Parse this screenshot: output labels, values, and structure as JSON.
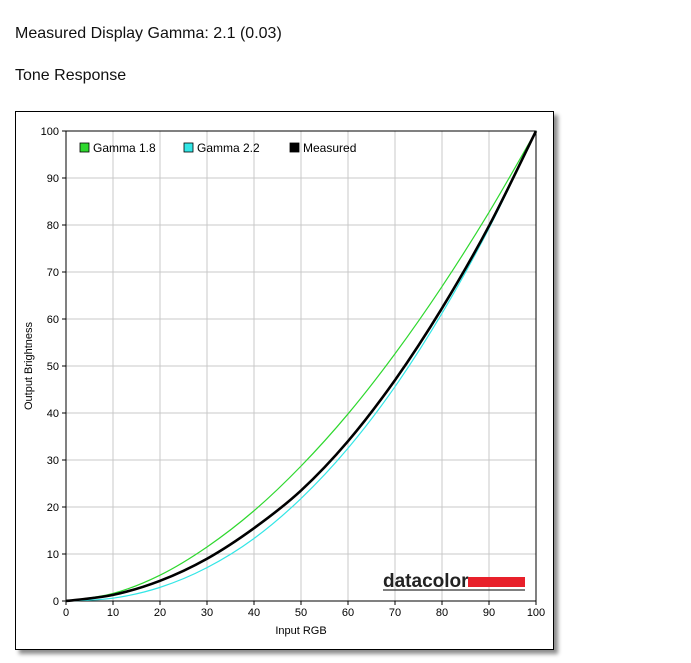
{
  "header": {
    "measured_gamma": "Measured Display Gamma: 2.1 (0.03)",
    "section_title": "Tone Response"
  },
  "logo": {
    "text": "datacolor",
    "accent_color": "#e8202a"
  },
  "chart_data": {
    "type": "line",
    "xlabel": "Input RGB",
    "ylabel": "Output Brightness",
    "xlim": [
      0,
      100
    ],
    "ylim": [
      0,
      100
    ],
    "x_ticks": [
      "0",
      "10",
      "20",
      "30",
      "40",
      "50",
      "60",
      "70",
      "80",
      "90",
      "100"
    ],
    "y_ticks": [
      "0",
      "10",
      "20",
      "30",
      "40",
      "50",
      "60",
      "70",
      "80",
      "90",
      "100"
    ],
    "grid": true,
    "legend_position": "top-left",
    "x": [
      0,
      10,
      20,
      30,
      40,
      50,
      60,
      70,
      80,
      90,
      100
    ],
    "series": [
      {
        "name": "Gamma 1.8",
        "color": "#2ed82e",
        "values": [
          0,
          1.6,
          5.5,
          11.5,
          19.2,
          28.7,
          39.8,
          52.6,
          66.9,
          82.7,
          100
        ]
      },
      {
        "name": "Gamma 2.2",
        "color": "#33e6e6",
        "values": [
          0,
          0.6,
          2.9,
          7.1,
          13.3,
          21.8,
          32.5,
          45.6,
          61.2,
          79.3,
          100
        ]
      },
      {
        "name": "Measured",
        "color": "#000000",
        "values": [
          0,
          1.3,
          4.3,
          9.0,
          15.5,
          23.5,
          34.0,
          47.0,
          62.3,
          79.8,
          100
        ]
      }
    ]
  }
}
